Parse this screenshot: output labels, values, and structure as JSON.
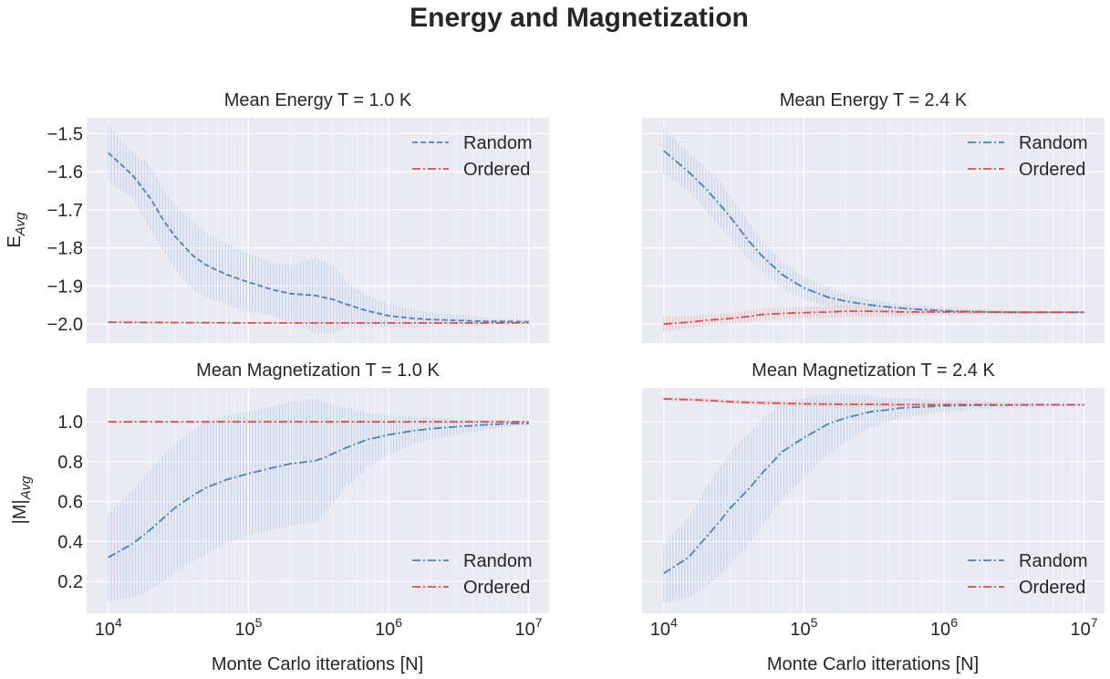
{
  "figure": {
    "suptitle": "Energy and Magnetization",
    "xlabel": "Monte Carlo itterations [N]"
  },
  "colors": {
    "random": "#4a80b8",
    "ordered": "#d05050",
    "random_band": "#aac4e2",
    "ordered_band": "#eca2a6",
    "panel_bg": "#eaeaf2",
    "grid": "#ffffff"
  },
  "chart_data": [
    {
      "type": "line",
      "title": "Mean Energy T = 1.0 K",
      "ylabel": "E_Avg",
      "xscale": "log",
      "xlim": [
        7000,
        14000000
      ],
      "ylim": [
        -2.05,
        -1.458
      ],
      "yticks": [
        -1.5,
        -1.6,
        -1.7,
        -1.8,
        -1.9,
        -2.0
      ],
      "ytick_labels": [
        "−1.5",
        "−1.6",
        "−1.7",
        "−1.8",
        "−1.9",
        "−2.0"
      ],
      "xticks": [
        10000,
        100000,
        1000000,
        10000000
      ],
      "xtick_labels": [
        "10^4",
        "10^5",
        "10^6",
        "10^7"
      ],
      "legend_position": "top-right",
      "grid": true,
      "series": [
        {
          "name": "Random",
          "style": "dashed",
          "x": [
            10000,
            15000,
            20000,
            25000,
            30000,
            40000,
            50000,
            70000,
            100000,
            150000,
            200000,
            300000,
            400000,
            500000,
            700000,
            1000000,
            1500000,
            2000000,
            3000000,
            5000000,
            7000000,
            10000000
          ],
          "y": [
            -1.55,
            -1.61,
            -1.67,
            -1.73,
            -1.77,
            -1.82,
            -1.845,
            -1.87,
            -1.89,
            -1.91,
            -1.92,
            -1.925,
            -1.935,
            -1.948,
            -1.965,
            -1.978,
            -1.985,
            -1.988,
            -1.99,
            -1.993,
            -1.993,
            -1.994
          ],
          "err": [
            0.075,
            0.06,
            0.085,
            0.08,
            0.085,
            0.09,
            0.085,
            0.08,
            0.075,
            0.07,
            0.075,
            0.1,
            0.09,
            0.06,
            0.04,
            0.03,
            0.025,
            0.018,
            0.015,
            0.01,
            0.008,
            0.006
          ]
        },
        {
          "name": "Ordered",
          "style": "dashdot",
          "x": [
            10000,
            30000,
            100000,
            300000,
            1000000,
            3000000,
            10000000
          ],
          "y": [
            -1.995,
            -1.996,
            -1.997,
            -1.997,
            -1.997,
            -1.997,
            -1.997
          ],
          "err": [
            0.004,
            0.004,
            0.003,
            0.003,
            0.003,
            0.002,
            0.002
          ]
        }
      ]
    },
    {
      "type": "line",
      "title": "Mean Energy T = 2.4 K",
      "ylabel": "",
      "xscale": "log",
      "xlim": [
        7000,
        14000000
      ],
      "ylim": [
        -2.05,
        -1.458
      ],
      "yticks": [
        -1.5,
        -1.6,
        -1.7,
        -1.8,
        -1.9,
        -2.0
      ],
      "ytick_labels": [
        "",
        "",
        "",
        "",
        "",
        ""
      ],
      "xticks": [
        10000,
        100000,
        1000000,
        10000000
      ],
      "xtick_labels": [
        "10^4",
        "10^5",
        "10^6",
        "10^7"
      ],
      "legend_position": "top-right",
      "grid": true,
      "series": [
        {
          "name": "Random",
          "style": "dashdot",
          "x": [
            10000,
            15000,
            20000,
            25000,
            30000,
            40000,
            50000,
            70000,
            100000,
            150000,
            200000,
            300000,
            400000,
            500000,
            700000,
            1000000,
            1500000,
            2000000,
            3000000,
            5000000,
            7000000,
            10000000
          ],
          "y": [
            -1.545,
            -1.6,
            -1.645,
            -1.685,
            -1.72,
            -1.78,
            -1.82,
            -1.87,
            -1.905,
            -1.93,
            -1.94,
            -1.95,
            -1.955,
            -1.958,
            -1.962,
            -1.965,
            -1.967,
            -1.968,
            -1.969,
            -1.969,
            -1.969,
            -1.969
          ],
          "err": [
            0.06,
            0.05,
            0.055,
            0.06,
            0.055,
            0.05,
            0.04,
            0.035,
            0.03,
            0.025,
            0.02,
            0.015,
            0.012,
            0.01,
            0.01,
            0.008,
            0.007,
            0.006,
            0.005,
            0.004,
            0.003,
            0.003
          ]
        },
        {
          "name": "Ordered",
          "style": "dashdot",
          "x": [
            10000,
            15000,
            20000,
            30000,
            40000,
            50000,
            70000,
            100000,
            150000,
            200000,
            300000,
            400000,
            500000,
            700000,
            1000000,
            1500000,
            2000000,
            3000000,
            5000000,
            7000000,
            10000000
          ],
          "y": [
            -2.0,
            -1.995,
            -1.99,
            -1.985,
            -1.98,
            -1.975,
            -1.972,
            -1.97,
            -1.968,
            -1.966,
            -1.966,
            -1.967,
            -1.968,
            -1.968,
            -1.968,
            -1.968,
            -1.968,
            -1.969,
            -1.969,
            -1.969,
            -1.969
          ],
          "err": [
            0.02,
            0.015,
            0.015,
            0.015,
            0.015,
            0.015,
            0.015,
            0.015,
            0.015,
            0.015,
            0.015,
            0.012,
            0.012,
            0.01,
            0.008,
            0.007,
            0.006,
            0.005,
            0.004,
            0.003,
            0.003
          ]
        }
      ]
    },
    {
      "type": "line",
      "title": "Mean Magnetization T = 1.0 K",
      "ylabel": "|M|_Avg",
      "xscale": "log",
      "xlim": [
        7000,
        14000000
      ],
      "ylim": [
        0.04,
        1.17
      ],
      "yticks": [
        0.2,
        0.4,
        0.6,
        0.8,
        1.0
      ],
      "ytick_labels": [
        "0.2",
        "0.4",
        "0.6",
        "0.8",
        "1.0"
      ],
      "xticks": [
        10000,
        100000,
        1000000,
        10000000
      ],
      "xtick_labels": [
        "10^4",
        "10^5",
        "10^6",
        "10^7"
      ],
      "legend_position": "bottom-right",
      "grid": true,
      "series": [
        {
          "name": "Random",
          "style": "dashdot",
          "x": [
            10000,
            15000,
            20000,
            25000,
            30000,
            40000,
            50000,
            70000,
            100000,
            150000,
            200000,
            300000,
            350000,
            400000,
            500000,
            700000,
            1000000,
            1500000,
            2000000,
            3000000,
            5000000,
            7000000,
            10000000
          ],
          "y": [
            0.32,
            0.39,
            0.46,
            0.52,
            0.57,
            0.63,
            0.67,
            0.71,
            0.74,
            0.77,
            0.79,
            0.805,
            0.82,
            0.84,
            0.87,
            0.91,
            0.935,
            0.955,
            0.965,
            0.975,
            0.985,
            0.99,
            0.992
          ],
          "err": [
            0.22,
            0.27,
            0.3,
            0.32,
            0.32,
            0.33,
            0.33,
            0.32,
            0.31,
            0.31,
            0.31,
            0.31,
            0.28,
            0.25,
            0.2,
            0.14,
            0.1,
            0.07,
            0.055,
            0.04,
            0.025,
            0.015,
            0.01
          ]
        },
        {
          "name": "Ordered",
          "style": "dashdot",
          "x": [
            10000,
            30000,
            100000,
            300000,
            1000000,
            3000000,
            10000000
          ],
          "y": [
            1.0,
            1.0,
            1.0,
            1.0,
            1.0,
            1.0,
            1.0
          ],
          "err": [
            0.002,
            0.002,
            0.002,
            0.002,
            0.002,
            0.002,
            0.002
          ]
        }
      ]
    },
    {
      "type": "line",
      "title": "Mean Magnetization T = 2.4 K",
      "ylabel": "",
      "xscale": "log",
      "xlim": [
        7000,
        14000000
      ],
      "ylim": [
        0.04,
        1.17
      ],
      "yticks": [
        0.2,
        0.4,
        0.6,
        0.8,
        1.0
      ],
      "ytick_labels": [
        "",
        "",
        "",
        "",
        ""
      ],
      "xticks": [
        10000,
        100000,
        1000000,
        10000000
      ],
      "xtick_labels": [
        "10^4",
        "10^5",
        "10^6",
        "10^7"
      ],
      "legend_position": "bottom-right",
      "grid": true,
      "series": [
        {
          "name": "Random",
          "style": "dashdot",
          "x": [
            10000,
            15000,
            20000,
            25000,
            30000,
            40000,
            50000,
            70000,
            100000,
            150000,
            200000,
            300000,
            400000,
            500000,
            700000,
            1000000,
            1500000,
            2000000,
            3000000,
            5000000,
            7000000,
            10000000
          ],
          "y": [
            0.24,
            0.32,
            0.42,
            0.5,
            0.57,
            0.66,
            0.74,
            0.85,
            0.92,
            0.99,
            1.02,
            1.05,
            1.06,
            1.07,
            1.075,
            1.08,
            1.082,
            1.083,
            1.084,
            1.085,
            1.085,
            1.085
          ],
          "err": [
            0.15,
            0.2,
            0.25,
            0.27,
            0.28,
            0.28,
            0.27,
            0.24,
            0.2,
            0.15,
            0.12,
            0.08,
            0.06,
            0.05,
            0.04,
            0.03,
            0.025,
            0.02,
            0.015,
            0.01,
            0.008,
            0.006
          ]
        },
        {
          "name": "Ordered",
          "style": "dashdot",
          "x": [
            10000,
            20000,
            30000,
            50000,
            70000,
            100000,
            150000,
            200000,
            300000,
            500000,
            700000,
            1000000,
            2000000,
            3000000,
            5000000,
            10000000
          ],
          "y": [
            1.115,
            1.108,
            1.1,
            1.095,
            1.092,
            1.09,
            1.088,
            1.087,
            1.087,
            1.086,
            1.086,
            1.086,
            1.086,
            1.085,
            1.085,
            1.085
          ],
          "err": [
            0.01,
            0.01,
            0.01,
            0.012,
            0.015,
            0.015,
            0.015,
            0.015,
            0.012,
            0.01,
            0.008,
            0.006,
            0.005,
            0.004,
            0.003,
            0.003
          ]
        }
      ]
    }
  ]
}
